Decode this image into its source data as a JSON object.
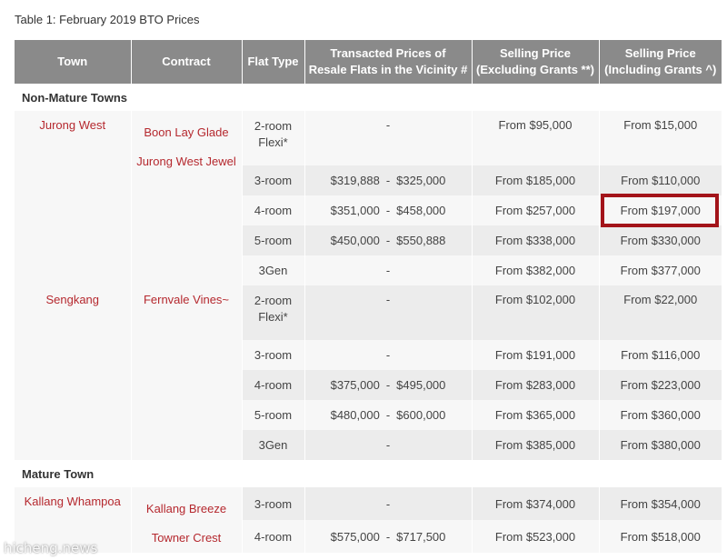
{
  "caption": "Table 1: February 2019 BTO Prices",
  "headers": {
    "town": "Town",
    "contract": "Contract",
    "flat_type": "Flat Type",
    "resale_line1": "Transacted Prices of",
    "resale_line2": "Resale Flats in the Vicinity #",
    "ex_line1": "Selling Price",
    "ex_line2": "(Excluding Grants **)",
    "in_line1": "Selling Price",
    "in_line2": "(Including Grants ^)"
  },
  "sections": {
    "non_mature": "Non-Mature Towns",
    "mature": "Mature Town"
  },
  "groups": {
    "jurong": {
      "town": "Jurong West",
      "contracts": [
        "Boon Lay Glade",
        "Jurong West Jewel"
      ],
      "rows": [
        {
          "type_line1": "2-room",
          "type_line2": "Flexi*",
          "resale": "-",
          "ex": "From $95,000",
          "inc": "From $15,000"
        },
        {
          "type": "3-room",
          "resale_low": "$319,888",
          "resale_high": "$325,000",
          "ex": "From $185,000",
          "inc": "From $110,000"
        },
        {
          "type": "4-room",
          "resale_low": "$351,000",
          "resale_high": "$458,000",
          "ex": "From $257,000",
          "inc": "From $197,000"
        },
        {
          "type": "5-room",
          "resale_low": "$450,000",
          "resale_high": "$550,888",
          "ex": "From $338,000",
          "inc": "From $330,000"
        },
        {
          "type": "3Gen",
          "resale": "-",
          "ex": "From $382,000",
          "inc": "From $377,000"
        }
      ]
    },
    "sengkang": {
      "town": "Sengkang",
      "contracts": [
        "Fernvale Vines~"
      ],
      "rows": [
        {
          "type_line1": "2-room",
          "type_line2": "Flexi*",
          "resale": "-",
          "ex": "From $102,000",
          "inc": "From $22,000"
        },
        {
          "type": "3-room",
          "resale": "-",
          "ex": "From $191,000",
          "inc": "From $116,000"
        },
        {
          "type": "4-room",
          "resale_low": "$375,000",
          "resale_high": "$495,000",
          "ex": "From $283,000",
          "inc": "From $223,000"
        },
        {
          "type": "5-room",
          "resale_low": "$480,000",
          "resale_high": "$600,000",
          "ex": "From $365,000",
          "inc": "From $360,000"
        },
        {
          "type": "3Gen",
          "resale": "-",
          "ex": "From $385,000",
          "inc": "From $380,000"
        }
      ]
    },
    "kallang": {
      "town": "Kallang Whampoa",
      "contracts": [
        "Kallang Breeze",
        "Towner Crest"
      ],
      "rows": [
        {
          "type": "3-room",
          "resale": "-",
          "ex": "From $374,000",
          "inc": "From $354,000"
        },
        {
          "type": "4-room",
          "resale_low": "$575,000",
          "resale_high": "$717,500",
          "ex": "From $523,000",
          "inc": "From $518,000"
        }
      ]
    }
  },
  "watermark": "hicheng.news",
  "colors": {
    "header_bg": "#8a8a8a",
    "town_text": "#b5282e",
    "highlight_border": "#a3141a"
  }
}
